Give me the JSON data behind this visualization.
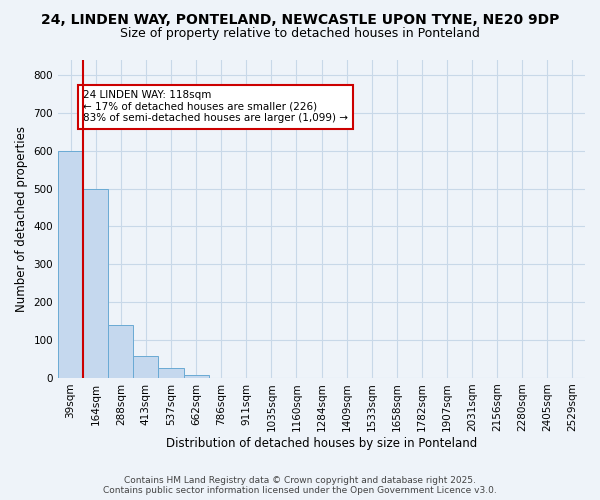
{
  "title_line1": "24, LINDEN WAY, PONTELAND, NEWCASTLE UPON TYNE, NE20 9DP",
  "title_line2": "Size of property relative to detached houses in Ponteland",
  "xlabel": "Distribution of detached houses by size in Ponteland",
  "ylabel": "Number of detached properties",
  "categories": [
    "39sqm",
    "164sqm",
    "288sqm",
    "413sqm",
    "537sqm",
    "662sqm",
    "786sqm",
    "911sqm",
    "1035sqm",
    "1160sqm",
    "1284sqm",
    "1409sqm",
    "1533sqm",
    "1658sqm",
    "1782sqm",
    "1907sqm",
    "2031sqm",
    "2156sqm",
    "2280sqm",
    "2405sqm",
    "2529sqm"
  ],
  "values": [
    600,
    500,
    140,
    58,
    25,
    7,
    0,
    0,
    0,
    0,
    0,
    0,
    0,
    0,
    0,
    0,
    0,
    0,
    0,
    0,
    0
  ],
  "bar_color": "#c5d8ee",
  "bar_edge_color": "#6aaad4",
  "grid_color": "#c8d8e8",
  "background_color": "#eef3f9",
  "vline_x": 0.5,
  "vline_color": "#cc0000",
  "annotation_text": "24 LINDEN WAY: 118sqm\n← 17% of detached houses are smaller (226)\n83% of semi-detached houses are larger (1,099) →",
  "annotation_box_color": "#ffffff",
  "annotation_box_edge": "#cc0000",
  "ylim": [
    0,
    840
  ],
  "yticks": [
    0,
    100,
    200,
    300,
    400,
    500,
    600,
    700,
    800
  ],
  "footer": "Contains HM Land Registry data © Crown copyright and database right 2025.\nContains public sector information licensed under the Open Government Licence v3.0.",
  "title_fontsize": 10,
  "subtitle_fontsize": 9,
  "axis_label_fontsize": 8.5,
  "tick_fontsize": 7.5,
  "footer_fontsize": 6.5
}
